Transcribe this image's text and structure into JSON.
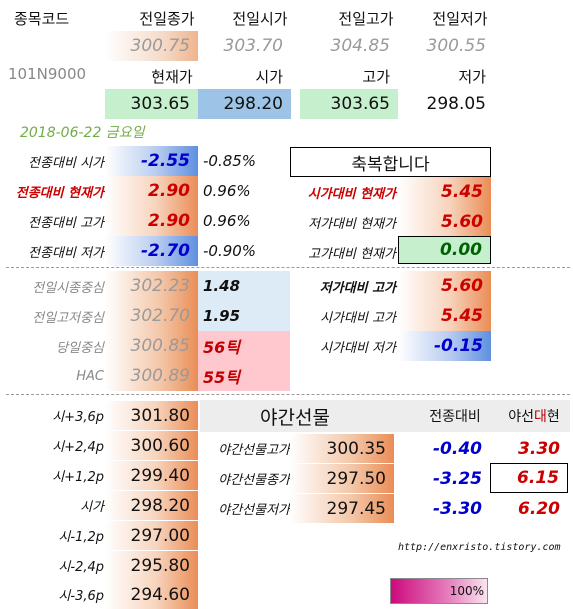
{
  "header": {
    "code_label": "종목코드",
    "code_value": "101N9000",
    "prev_close_label": "전일종가",
    "prev_open_label": "전일시가",
    "prev_high_label": "전일고가",
    "prev_low_label": "전일저가",
    "prev_close": "300.75",
    "prev_open": "303.70",
    "prev_high": "304.85",
    "prev_low": "300.55",
    "cur_label": "현재가",
    "open_label": "시가",
    "high_label": "고가",
    "low_label": "저가",
    "cur": "303.65",
    "open": "298.20",
    "high": "303.65",
    "low": "298.05"
  },
  "date": "2018-06-22 금요일",
  "message": "축복합니다",
  "left_diff": [
    {
      "label": "전종대비 시가",
      "value": "-2.55",
      "pct": "-0.85%"
    },
    {
      "label": "전종대비 현재가",
      "value": "2.90",
      "pct": "0.96%"
    },
    {
      "label": "전종대비 고가",
      "value": "2.90",
      "pct": "0.96%"
    },
    {
      "label": "전종대비 저가",
      "value": "-2.70",
      "pct": "-0.90%"
    }
  ],
  "right_diff": [
    {
      "label": "시가대비 현재가",
      "value": "5.45"
    },
    {
      "label": "저가대비 현재가",
      "value": "5.60"
    },
    {
      "label": "고가대비 현재가",
      "value": "0.00"
    }
  ],
  "centers": [
    {
      "label": "전일시종중심",
      "value": "302.23",
      "extra": "1.48"
    },
    {
      "label": "전일고저중심",
      "value": "302.70",
      "extra": "1.95"
    },
    {
      "label": "당일중심",
      "value": "300.85",
      "extra": "56틱"
    },
    {
      "label": "HAC",
      "value": "300.89",
      "extra": "55틱"
    }
  ],
  "right_ranges": [
    {
      "label": "저가대비 고가",
      "value": "5.60"
    },
    {
      "label": "시가대비 고가",
      "value": "5.45"
    },
    {
      "label": "시가대비 저가",
      "value": "-0.15"
    }
  ],
  "levels": [
    {
      "label": "시+3,6p",
      "value": "301.80"
    },
    {
      "label": "시+2,4p",
      "value": "300.60"
    },
    {
      "label": "시+1,2p",
      "value": "299.40"
    },
    {
      "label": "시가",
      "value": "298.20"
    },
    {
      "label": "시-1,2p",
      "value": "297.00"
    },
    {
      "label": "시-2,4p",
      "value": "295.80"
    },
    {
      "label": "시-3,6p",
      "value": "294.60"
    }
  ],
  "night": {
    "title": "야간선물",
    "col_diff": "전종대비",
    "col_range_a": "야선",
    "col_range_b": "대",
    "col_range_c": "현",
    "rows": [
      {
        "label": "야간선물고가",
        "value": "300.35",
        "diff": "-0.40",
        "range": "3.30"
      },
      {
        "label": "야간선물종가",
        "value": "297.50",
        "diff": "-3.25",
        "range": "6.15"
      },
      {
        "label": "야간선물저가",
        "value": "297.45",
        "diff": "-3.30",
        "range": "6.20"
      }
    ]
  },
  "url": "http://enxristo.tistory.com",
  "progress": {
    "label": "100%",
    "value": 1.0
  },
  "colors": {
    "orange": "#ea8d56",
    "blue": "#5f90df",
    "green_fill": "#c6efce",
    "pink_fill": "#ffc7ce",
    "light_blue_fill": "#ddebf7",
    "progress": "#cc0a7c"
  }
}
